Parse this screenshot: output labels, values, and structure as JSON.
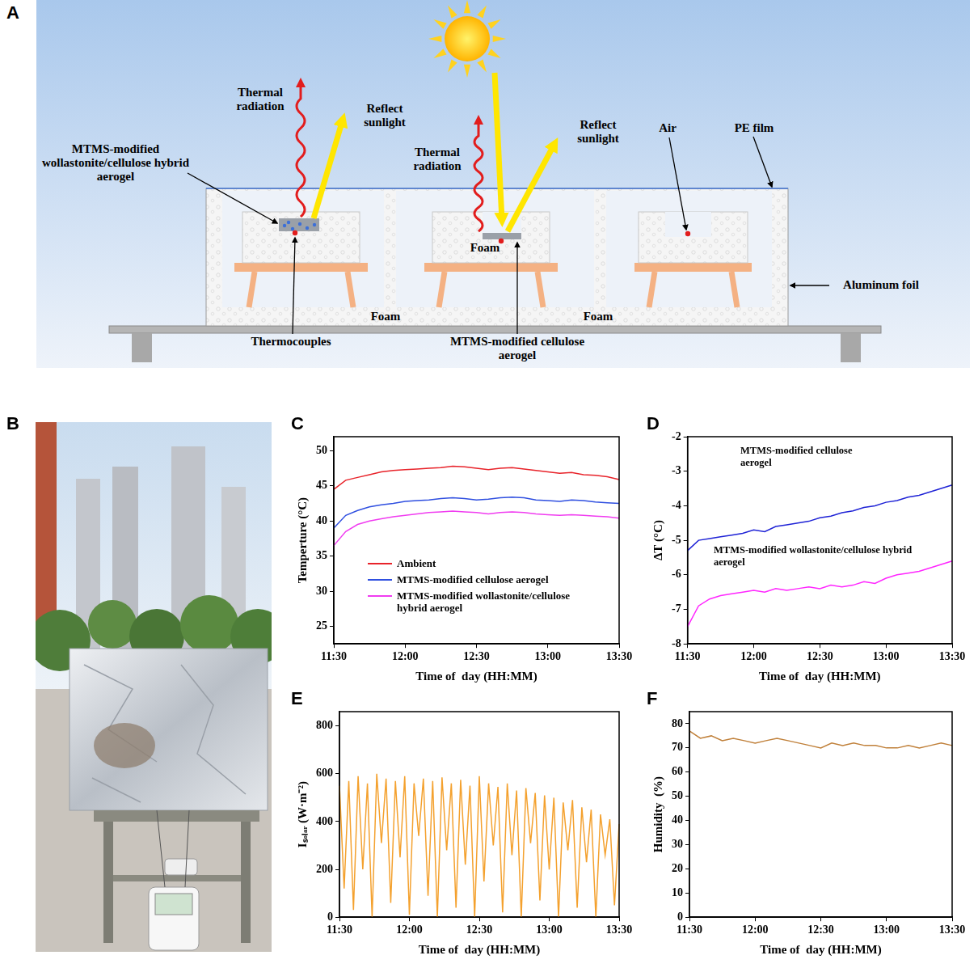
{
  "diagram": {
    "panel": "A",
    "labels": {
      "thermal_radiation_left": "Thermal radiation",
      "reflect_sunlight_left": "Reflect sunlight",
      "hybrid_aerogel": "MTMS-modified wollastonite/cellulose hybrid aerogel",
      "thermal_radiation_middle": "Thermal radiation",
      "reflect_sunlight_middle": "Reflect sunlight",
      "foam_inner": "Foam",
      "air": "Air",
      "pe_film": "PE film",
      "aluminum_foil": "Aluminum foil",
      "foam_bottom_left": "Foam",
      "foam_bottom_right": "Foam",
      "thermocouples": "Thermocouples",
      "cellulose_aerogel": "MTMS-modified cellulose aerogel"
    }
  },
  "photo": {
    "panel": "B"
  },
  "chart_data": [
    {
      "panel": "C",
      "type": "line",
      "x_label": "Time of  day (HH:MM)",
      "y_label": "Temperture (°C)",
      "categories": [
        "11:30",
        null,
        null,
        null,
        null,
        null,
        "12:00",
        null,
        null,
        null,
        null,
        null,
        "12:30",
        null,
        null,
        null,
        null,
        null,
        "13:00",
        null,
        null,
        null,
        null,
        null,
        "13:30"
      ],
      "ylim": [
        22.5,
        52
      ],
      "yticks": [
        25,
        30,
        35,
        40,
        45,
        50
      ],
      "grid": false,
      "legend": "lower left",
      "series": [
        {
          "name": "Ambient",
          "color": "#e8232a",
          "values": [
            44.5,
            45.8,
            46.2,
            46.6,
            47.0,
            47.2,
            47.3,
            47.4,
            47.5,
            47.6,
            47.8,
            47.7,
            47.5,
            47.3,
            47.5,
            47.6,
            47.4,
            47.2,
            47.0,
            46.8,
            46.9,
            46.6,
            46.5,
            46.3,
            45.9
          ]
        },
        {
          "name": "MTMS-modified cellulose aerogel",
          "color": "#2f4fe0",
          "values": [
            39.0,
            40.8,
            41.5,
            42.0,
            42.3,
            42.5,
            42.8,
            42.9,
            43.0,
            43.2,
            43.3,
            43.2,
            43.0,
            43.1,
            43.3,
            43.4,
            43.3,
            43.0,
            42.9,
            42.8,
            43.0,
            42.9,
            42.7,
            42.6,
            42.5
          ]
        },
        {
          "name": "MTMS-modified wollastonite/cellulose hybrid aerogel",
          "color": "#f03cf0",
          "values": [
            36.5,
            38.5,
            39.5,
            40.0,
            40.3,
            40.6,
            40.8,
            41.0,
            41.2,
            41.3,
            41.4,
            41.3,
            41.2,
            41.0,
            41.2,
            41.3,
            41.2,
            41.0,
            40.9,
            40.8,
            40.9,
            40.8,
            40.7,
            40.6,
            40.4
          ]
        }
      ]
    },
    {
      "panel": "D",
      "type": "line",
      "x_label": "Time of  day (HH:MM)",
      "y_label": "ΔT (°C)",
      "categories": [
        "11:30",
        null,
        null,
        null,
        null,
        null,
        "12:00",
        null,
        null,
        null,
        null,
        null,
        "12:30",
        null,
        null,
        null,
        null,
        null,
        "13:00",
        null,
        null,
        null,
        null,
        null,
        "13:30"
      ],
      "ylim": [
        -8,
        -2
      ],
      "yticks": [
        -8,
        -7,
        -6,
        -5,
        -4,
        -3,
        -2
      ],
      "grid": false,
      "annotations": [
        {
          "text": "MTMS-modified cellulose aerogel"
        },
        {
          "text": "MTMS-modified wollastonite/cellulose hybrid aerogel"
        }
      ],
      "series": [
        {
          "name": "MTMS-modified cellulose aerogel",
          "color": "#1f23d6",
          "values": [
            -5.3,
            -5.0,
            -4.95,
            -4.9,
            -4.85,
            -4.8,
            -4.7,
            -4.75,
            -4.6,
            -4.55,
            -4.5,
            -4.45,
            -4.35,
            -4.3,
            -4.2,
            -4.15,
            -4.05,
            -4.0,
            -3.9,
            -3.85,
            -3.75,
            -3.7,
            -3.6,
            -3.5,
            -3.4
          ]
        },
        {
          "name": "MTMS-modified wollastonite/cellulose hybrid aerogel",
          "color": "#ff26ff",
          "values": [
            -7.5,
            -6.9,
            -6.7,
            -6.6,
            -6.55,
            -6.5,
            -6.45,
            -6.5,
            -6.4,
            -6.45,
            -6.4,
            -6.35,
            -6.4,
            -6.3,
            -6.35,
            -6.3,
            -6.2,
            -6.25,
            -6.1,
            -6.0,
            -5.95,
            -5.9,
            -5.8,
            -5.7,
            -5.6
          ]
        }
      ]
    },
    {
      "panel": "E",
      "type": "line",
      "x_label": "Time of  day (HH:MM)",
      "y_label": "Iₛₒₗₐᵣ (W·m⁻²)",
      "categories": [
        "11:30",
        null,
        null,
        null,
        null,
        null,
        null,
        null,
        null,
        null,
        null,
        null,
        null,
        null,
        null,
        "12:00",
        null,
        null,
        null,
        null,
        null,
        null,
        null,
        null,
        null,
        null,
        null,
        null,
        null,
        null,
        "12:30",
        null,
        null,
        null,
        null,
        null,
        null,
        null,
        null,
        null,
        null,
        null,
        null,
        null,
        null,
        "13:00",
        null,
        null,
        null,
        null,
        null,
        null,
        null,
        null,
        null,
        null,
        null,
        null,
        null,
        null,
        "13:30"
      ],
      "ylim": [
        0,
        860
      ],
      "yticks": [
        0,
        200,
        400,
        600,
        800
      ],
      "grid": false,
      "color": "#f4a12e",
      "values": [
        550,
        120,
        570,
        30,
        590,
        200,
        560,
        0,
        600,
        310,
        580,
        60,
        570,
        250,
        590,
        10,
        560,
        340,
        580,
        90,
        570,
        0,
        585,
        280,
        560,
        40,
        575,
        220,
        550,
        0,
        590,
        150,
        560,
        300,
        545,
        20,
        560,
        260,
        530,
        0,
        540,
        310,
        520,
        70,
        510,
        200,
        500,
        0,
        480,
        280,
        490,
        40,
        460,
        230,
        450,
        0,
        430,
        260,
        410,
        50,
        390
      ]
    },
    {
      "panel": "F",
      "type": "line",
      "x_label": "Time of  day (HH:MM)",
      "y_label": "Humidity  (%)",
      "categories": [
        "11:30",
        null,
        null,
        null,
        null,
        null,
        "12:00",
        null,
        null,
        null,
        null,
        null,
        "12:30",
        null,
        null,
        null,
        null,
        null,
        "13:00",
        null,
        null,
        null,
        null,
        null,
        "13:30"
      ],
      "ylim": [
        0,
        85
      ],
      "yticks": [
        0,
        10,
        20,
        30,
        40,
        50,
        60,
        70,
        80
      ],
      "grid": false,
      "color": "#c0803a",
      "values": [
        77,
        74,
        75,
        73,
        74,
        73,
        72,
        73,
        74,
        73,
        72,
        71,
        70,
        72,
        71,
        72,
        71,
        71,
        70,
        70,
        71,
        70,
        71,
        72,
        71
      ]
    }
  ]
}
